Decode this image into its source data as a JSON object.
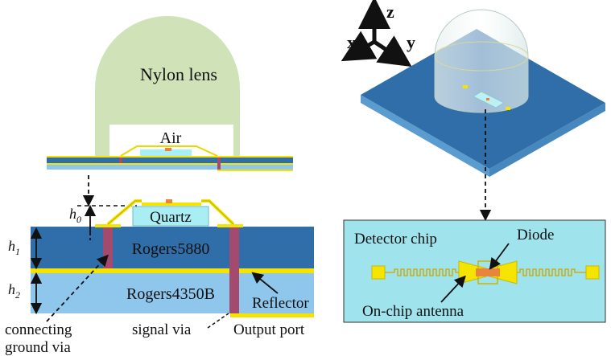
{
  "labels": {
    "lens": "Nylon lens",
    "air": "Air",
    "quartz": "Quartz",
    "h0": "h",
    "h0_sub": "0",
    "h1": "h",
    "h1_sub": "1",
    "h2": "h",
    "h2_sub": "2",
    "rogers5880": "Rogers5880",
    "rogers4350b": "Rogers4350B",
    "reflector": "Reflector",
    "output_port": "Output port",
    "signal_via": "signal via",
    "connecting_ground_via_line1": "connecting",
    "connecting_ground_via_line2": "ground via",
    "axis_z": "z",
    "axis_x": "x",
    "axis_y": "y",
    "detector_chip": "Detector chip",
    "diode": "Diode",
    "on_chip_antenna": "On-chip antenna"
  },
  "colors": {
    "lens": "#cfe2b8",
    "substrate_dark": "#2f6ea8",
    "substrate_light": "#8fc6ec",
    "metal": "#f5e400",
    "via": "#a34a6e",
    "quartz": "#a8eef4",
    "chip_bg": "#9fe3ec",
    "diode": "#e8853a"
  }
}
